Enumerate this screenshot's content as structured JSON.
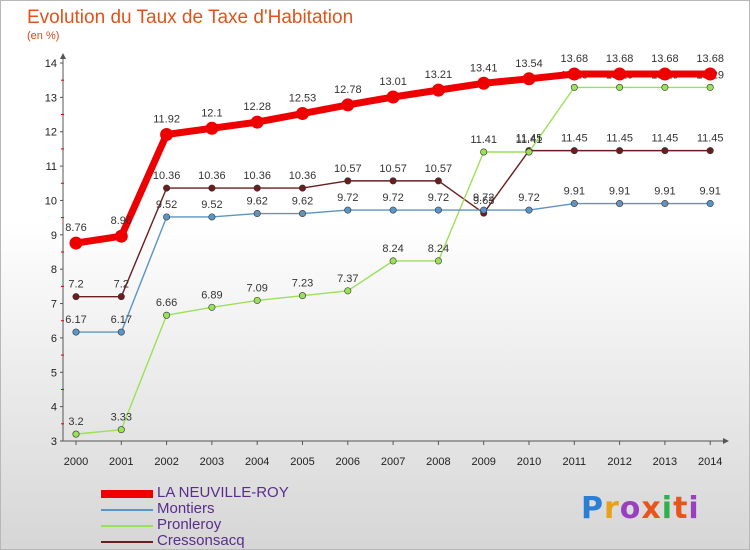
{
  "header": {
    "title": "Evolution du Taux de Taxe d'Habitation",
    "subtitle": "(en %)"
  },
  "logo": {
    "text": "Proxiti"
  },
  "chart_data": {
    "type": "line",
    "title": "Evolution du Taux de Taxe d'Habitation",
    "subtitle": "(en %)",
    "xlabel": "",
    "ylabel": "",
    "ylim": [
      3,
      14
    ],
    "yticks": [
      3,
      4,
      5,
      6,
      7,
      8,
      9,
      10,
      11,
      12,
      13,
      14
    ],
    "grid": false,
    "legend_position": "bottom-left",
    "x": [
      "2000",
      "2001",
      "2002",
      "2003",
      "2004",
      "2005",
      "2006",
      "2007",
      "2008",
      "2009",
      "2010",
      "2011",
      "2012",
      "2013",
      "2014"
    ],
    "series": [
      {
        "name": "Cressonsacq",
        "color": "#6b1e1e",
        "values": [
          7.2,
          7.2,
          10.36,
          10.36,
          10.36,
          10.36,
          10.57,
          10.57,
          10.57,
          9.63,
          11.45,
          11.45,
          11.45,
          11.45,
          11.45
        ]
      },
      {
        "name": "Pronleroy",
        "color": "#9be05a",
        "values": [
          3.2,
          3.33,
          6.66,
          6.89,
          7.09,
          7.23,
          7.37,
          8.24,
          8.24,
          11.41,
          11.41,
          13.29,
          13.29,
          13.29,
          13.29
        ]
      },
      {
        "name": "Montiers",
        "color": "#5a95c8",
        "values": [
          6.17,
          6.17,
          9.52,
          9.52,
          9.62,
          9.62,
          9.72,
          9.72,
          9.72,
          9.72,
          9.72,
          9.91,
          9.91,
          9.91,
          9.91
        ]
      },
      {
        "name": "LA NEUVILLE-ROY",
        "color": "#ee0000",
        "values": [
          8.76,
          8.96,
          11.92,
          12.1,
          12.28,
          12.53,
          12.78,
          13.01,
          13.21,
          13.41,
          13.54,
          13.68,
          13.68,
          13.68,
          13.68
        ]
      }
    ],
    "legend": [
      "LA NEUVILLE-ROY",
      "Montiers",
      "Pronleroy",
      "Cressonsacq"
    ]
  }
}
